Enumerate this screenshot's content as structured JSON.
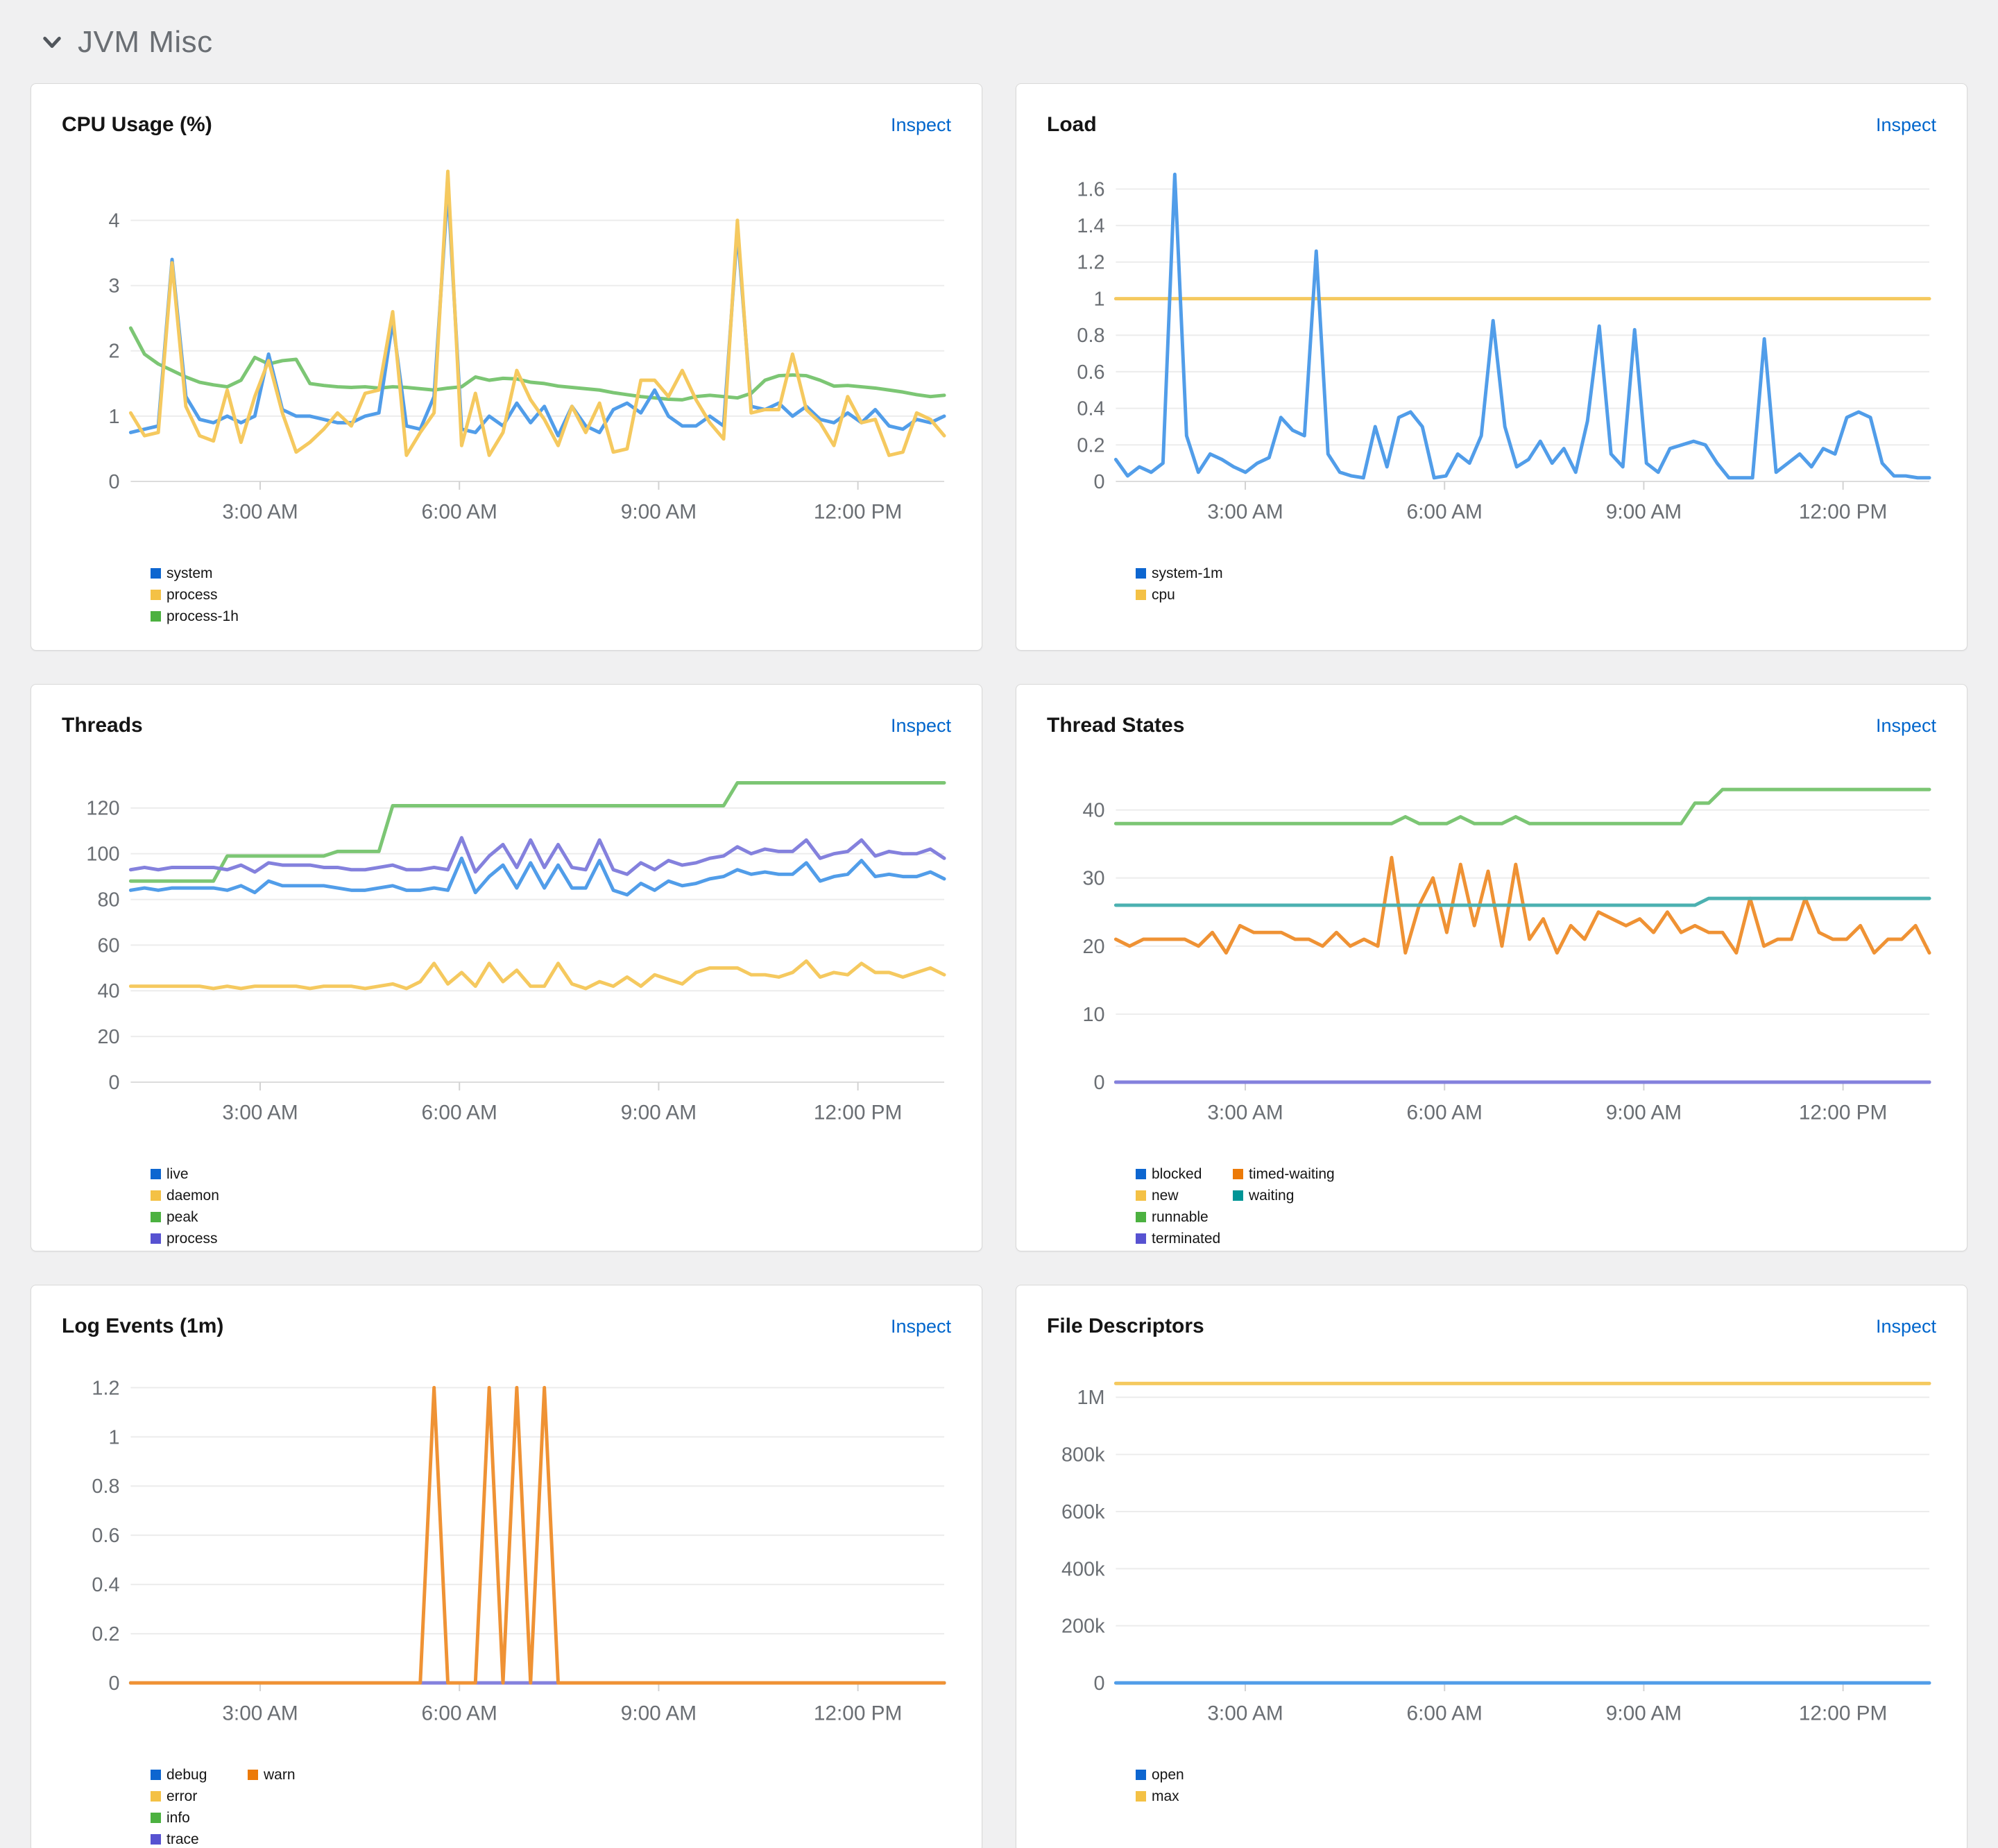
{
  "page": {
    "section_title": "JVM Misc",
    "background": "#f0f0f1"
  },
  "inspect_label": "Inspect",
  "palette": {
    "blue": {
      "line": "#519de9",
      "swatch": "#0d66d0"
    },
    "gold": {
      "line": "#f5c95f",
      "swatch": "#f4c145"
    },
    "green": {
      "line": "#7cc674",
      "swatch": "#4cb140"
    },
    "purple": {
      "line": "#8481dd",
      "swatch": "#5752d1"
    },
    "orange": {
      "line": "#ef9234",
      "swatch": "#ec7a08"
    },
    "teal": {
      "line": "#4cb1b1",
      "swatch": "#009596"
    }
  },
  "axis": {
    "xlim": [
      1.05,
      13.3
    ],
    "xticks": [
      3,
      6,
      9,
      12
    ],
    "xtick_labels": [
      "3:00 AM",
      "6:00 AM",
      "9:00 AM",
      "12:00 PM"
    ],
    "grid": true,
    "legend_position": "bottom-left"
  },
  "chart_data": [
    {
      "type": "line",
      "title": "CPU Usage (%)",
      "ylim": [
        0,
        4.9
      ],
      "yticks": [
        0,
        1,
        2,
        3,
        4
      ],
      "ytick_labels": [
        "0",
        "1",
        "2",
        "3",
        "4"
      ],
      "legend": [
        [
          "system",
          "process",
          "process-1h"
        ]
      ],
      "series": [
        {
          "name": "process-1h",
          "color": "green",
          "values": [
            2.35,
            1.95,
            1.8,
            1.7,
            1.6,
            1.52,
            1.48,
            1.45,
            1.55,
            1.9,
            1.8,
            1.85,
            1.87,
            1.5,
            1.47,
            1.45,
            1.44,
            1.45,
            1.43,
            1.45,
            1.44,
            1.42,
            1.4,
            1.43,
            1.45,
            1.6,
            1.55,
            1.58,
            1.57,
            1.52,
            1.5,
            1.46,
            1.44,
            1.42,
            1.4,
            1.36,
            1.33,
            1.3,
            1.28,
            1.26,
            1.25,
            1.3,
            1.32,
            1.3,
            1.28,
            1.35,
            1.55,
            1.62,
            1.63,
            1.62,
            1.55,
            1.46,
            1.47,
            1.45,
            1.43,
            1.4,
            1.37,
            1.33,
            1.3,
            1.32
          ]
        },
        {
          "name": "system",
          "color": "blue",
          "values": [
            0.75,
            0.8,
            0.85,
            3.4,
            1.3,
            0.95,
            0.9,
            1.0,
            0.9,
            1.0,
            1.95,
            1.1,
            1.0,
            1.0,
            0.95,
            0.9,
            0.9,
            1.0,
            1.05,
            2.45,
            0.85,
            0.8,
            1.3,
            4.5,
            0.8,
            0.75,
            1.0,
            0.85,
            1.2,
            0.9,
            1.15,
            0.7,
            1.15,
            0.85,
            0.75,
            1.1,
            1.2,
            1.05,
            1.4,
            1.0,
            0.85,
            0.85,
            1.0,
            0.85,
            3.85,
            1.15,
            1.1,
            1.2,
            1.0,
            1.15,
            0.95,
            0.9,
            1.05,
            0.9,
            1.1,
            0.85,
            0.8,
            0.95,
            0.9,
            1.0
          ]
        },
        {
          "name": "process",
          "color": "gold",
          "values": [
            1.05,
            0.7,
            0.75,
            3.35,
            1.15,
            0.7,
            0.62,
            1.4,
            0.6,
            1.3,
            1.85,
            1.05,
            0.45,
            0.6,
            0.8,
            1.05,
            0.85,
            1.35,
            1.4,
            2.6,
            0.4,
            0.75,
            1.05,
            4.75,
            0.55,
            1.35,
            0.4,
            0.75,
            1.7,
            1.25,
            0.95,
            0.55,
            1.15,
            0.75,
            1.2,
            0.45,
            0.5,
            1.55,
            1.55,
            1.3,
            1.7,
            1.25,
            0.9,
            0.65,
            4.0,
            1.05,
            1.1,
            1.1,
            1.95,
            1.1,
            0.9,
            0.55,
            1.3,
            0.9,
            0.95,
            0.4,
            0.45,
            1.05,
            0.95,
            0.7
          ]
        }
      ]
    },
    {
      "type": "line",
      "title": "Load",
      "ylim": [
        0,
        1.75
      ],
      "yticks": [
        0,
        0.2,
        0.4,
        0.6,
        0.8,
        1,
        1.2,
        1.4,
        1.6
      ],
      "ytick_labels": [
        "0",
        "0.2",
        "0.4",
        "0.6",
        "0.8",
        "1",
        "1.2",
        "1.4",
        "1.6"
      ],
      "legend": [
        [
          "system-1m",
          "cpu"
        ]
      ],
      "series": [
        {
          "name": "cpu",
          "color": "gold",
          "values": [
            1,
            1
          ]
        },
        {
          "name": "system-1m",
          "color": "blue",
          "values": [
            0.12,
            0.03,
            0.08,
            0.05,
            0.1,
            1.68,
            0.25,
            0.05,
            0.15,
            0.12,
            0.08,
            0.05,
            0.1,
            0.13,
            0.35,
            0.28,
            0.25,
            1.26,
            0.15,
            0.05,
            0.03,
            0.02,
            0.3,
            0.08,
            0.35,
            0.38,
            0.3,
            0.02,
            0.03,
            0.15,
            0.1,
            0.25,
            0.88,
            0.3,
            0.08,
            0.12,
            0.22,
            0.1,
            0.18,
            0.05,
            0.33,
            0.85,
            0.15,
            0.08,
            0.83,
            0.1,
            0.05,
            0.18,
            0.2,
            0.22,
            0.2,
            0.1,
            0.02,
            0.02,
            0.02,
            0.78,
            0.05,
            0.1,
            0.15,
            0.08,
            0.18,
            0.15,
            0.35,
            0.38,
            0.35,
            0.1,
            0.03,
            0.03,
            0.02,
            0.02
          ]
        }
      ]
    },
    {
      "type": "line",
      "title": "Threads",
      "ylim": [
        0,
        140
      ],
      "yticks": [
        0,
        20,
        40,
        60,
        80,
        100,
        120
      ],
      "ytick_labels": [
        "0",
        "20",
        "40",
        "60",
        "80",
        "100",
        "120"
      ],
      "legend": [
        [
          "live",
          "daemon",
          "peak",
          "process"
        ]
      ],
      "series": [
        {
          "name": "peak",
          "color": "green",
          "values": [
            88,
            88,
            88,
            88,
            88,
            88,
            88,
            99,
            99,
            99,
            99,
            99,
            99,
            99,
            99,
            101,
            101,
            101,
            101,
            121,
            121,
            121,
            121,
            121,
            121,
            121,
            121,
            121,
            121,
            121,
            121,
            121,
            121,
            121,
            121,
            121,
            121,
            121,
            121,
            121,
            121,
            121,
            121,
            121,
            131,
            131,
            131,
            131,
            131,
            131,
            131,
            131,
            131,
            131,
            131,
            131,
            131,
            131,
            131,
            131
          ]
        },
        {
          "name": "live",
          "color": "blue",
          "values": [
            84,
            85,
            84,
            85,
            85,
            85,
            85,
            84,
            86,
            83,
            88,
            86,
            86,
            86,
            86,
            85,
            84,
            84,
            85,
            86,
            84,
            84,
            85,
            84,
            98,
            83,
            90,
            95,
            85,
            96,
            85,
            95,
            85,
            85,
            97,
            84,
            82,
            87,
            84,
            88,
            86,
            87,
            89,
            90,
            93,
            91,
            92,
            91,
            91,
            96,
            88,
            90,
            91,
            97,
            90,
            91,
            90,
            90,
            92,
            89
          ]
        },
        {
          "name": "process",
          "color": "purple",
          "values": [
            93,
            94,
            93,
            94,
            94,
            94,
            94,
            93,
            95,
            92,
            96,
            95,
            95,
            95,
            94,
            94,
            93,
            93,
            94,
            95,
            93,
            93,
            94,
            93,
            107,
            92,
            99,
            104,
            94,
            106,
            94,
            104,
            94,
            93,
            106,
            93,
            91,
            96,
            93,
            97,
            95,
            96,
            98,
            99,
            103,
            100,
            102,
            101,
            101,
            106,
            98,
            100,
            101,
            106,
            99,
            101,
            100,
            100,
            102,
            98
          ]
        },
        {
          "name": "daemon",
          "color": "gold",
          "values": [
            42,
            42,
            42,
            42,
            42,
            42,
            41,
            42,
            41,
            42,
            42,
            42,
            42,
            41,
            42,
            42,
            42,
            41,
            42,
            43,
            41,
            44,
            52,
            43,
            48,
            42,
            52,
            44,
            49,
            42,
            42,
            52,
            43,
            41,
            44,
            42,
            46,
            42,
            47,
            45,
            43,
            48,
            50,
            50,
            50,
            47,
            47,
            46,
            48,
            53,
            46,
            48,
            47,
            52,
            48,
            48,
            46,
            48,
            50,
            47
          ]
        }
      ]
    },
    {
      "type": "line",
      "title": "Thread States",
      "ylim": [
        0,
        47
      ],
      "yticks": [
        0,
        10,
        20,
        30,
        40
      ],
      "ytick_labels": [
        "0",
        "10",
        "20",
        "30",
        "40"
      ],
      "legend": [
        [
          "blocked",
          "new",
          "runnable",
          "terminated"
        ],
        [
          "timed-waiting",
          "waiting"
        ]
      ],
      "series": [
        {
          "name": "blocked",
          "color": "blue",
          "values": [
            0,
            0
          ]
        },
        {
          "name": "new",
          "color": "gold",
          "values": [
            0,
            0
          ]
        },
        {
          "name": "terminated",
          "color": "purple",
          "values": [
            0,
            0
          ]
        },
        {
          "name": "runnable",
          "color": "green",
          "values": [
            38,
            38,
            38,
            38,
            38,
            38,
            38,
            38,
            38,
            38,
            38,
            38,
            38,
            38,
            38,
            38,
            38,
            38,
            38,
            38,
            38,
            39,
            38,
            38,
            38,
            39,
            38,
            38,
            38,
            39,
            38,
            38,
            38,
            38,
            38,
            38,
            38,
            38,
            38,
            38,
            38,
            38,
            41,
            41,
            43,
            43,
            43,
            43,
            43,
            43,
            43,
            43,
            43,
            43,
            43,
            43,
            43,
            43,
            43,
            43
          ]
        },
        {
          "name": "timed-waiting",
          "color": "orange",
          "values": [
            21,
            20,
            21,
            21,
            21,
            21,
            20,
            22,
            19,
            23,
            22,
            22,
            22,
            21,
            21,
            20,
            22,
            20,
            21,
            20,
            33,
            19,
            26,
            30,
            22,
            32,
            23,
            31,
            20,
            32,
            21,
            24,
            19,
            23,
            21,
            25,
            24,
            23,
            24,
            22,
            25,
            22,
            23,
            22,
            22,
            19,
            27,
            20,
            21,
            21,
            27,
            22,
            21,
            21,
            23,
            19,
            21,
            21,
            23,
            19
          ]
        },
        {
          "name": "waiting",
          "color": "teal",
          "values": [
            26,
            26,
            26,
            26,
            26,
            26,
            26,
            26,
            26,
            26,
            26,
            26,
            26,
            26,
            26,
            26,
            26,
            26,
            26,
            26,
            26,
            26,
            26,
            26,
            26,
            26,
            26,
            26,
            26,
            26,
            26,
            26,
            26,
            26,
            26,
            26,
            26,
            26,
            26,
            26,
            26,
            26,
            26,
            27,
            27,
            27,
            27,
            27,
            27,
            27,
            27,
            27,
            27,
            27,
            27,
            27,
            27,
            27,
            27,
            27
          ]
        }
      ]
    },
    {
      "type": "line",
      "title": "Log Events (1m)",
      "ylim": [
        0,
        1.3
      ],
      "yticks": [
        0,
        0.2,
        0.4,
        0.6,
        0.8,
        1,
        1.2
      ],
      "ytick_labels": [
        "0",
        "0.2",
        "0.4",
        "0.6",
        "0.8",
        "1",
        "1.2"
      ],
      "legend": [
        [
          "debug",
          "error",
          "info",
          "trace"
        ],
        [
          "warn"
        ]
      ],
      "series": [
        {
          "name": "debug",
          "color": "blue",
          "values": [
            0,
            0
          ]
        },
        {
          "name": "error",
          "color": "gold",
          "values": [
            0,
            0
          ]
        },
        {
          "name": "info",
          "color": "green",
          "values": [
            0,
            0
          ]
        },
        {
          "name": "trace",
          "color": "purple",
          "values": [
            0,
            0
          ]
        },
        {
          "name": "warn",
          "color": "orange",
          "values": [
            0,
            0,
            0,
            0,
            0,
            0,
            0,
            0,
            0,
            0,
            0,
            0,
            0,
            0,
            0,
            0,
            0,
            0,
            0,
            0,
            0,
            0,
            1.2,
            0,
            0,
            0,
            1.2,
            0,
            1.2,
            0,
            1.2,
            0,
            0,
            0,
            0,
            0,
            0,
            0,
            0,
            0,
            0,
            0,
            0,
            0,
            0,
            0,
            0,
            0,
            0,
            0,
            0,
            0,
            0,
            0,
            0,
            0,
            0,
            0,
            0,
            0
          ]
        }
      ]
    },
    {
      "type": "line",
      "title": "File Descriptors",
      "ylim": [
        0,
        1120000
      ],
      "yticks": [
        0,
        200000,
        400000,
        600000,
        800000,
        1000000
      ],
      "ytick_labels": [
        "0",
        "200k",
        "400k",
        "600k",
        "800k",
        "1M"
      ],
      "legend": [
        [
          "open",
          "max"
        ]
      ],
      "series": [
        {
          "name": "max",
          "color": "gold",
          "values": [
            1048576,
            1048576
          ]
        },
        {
          "name": "open",
          "color": "blue",
          "values": [
            0,
            0
          ]
        }
      ]
    }
  ]
}
